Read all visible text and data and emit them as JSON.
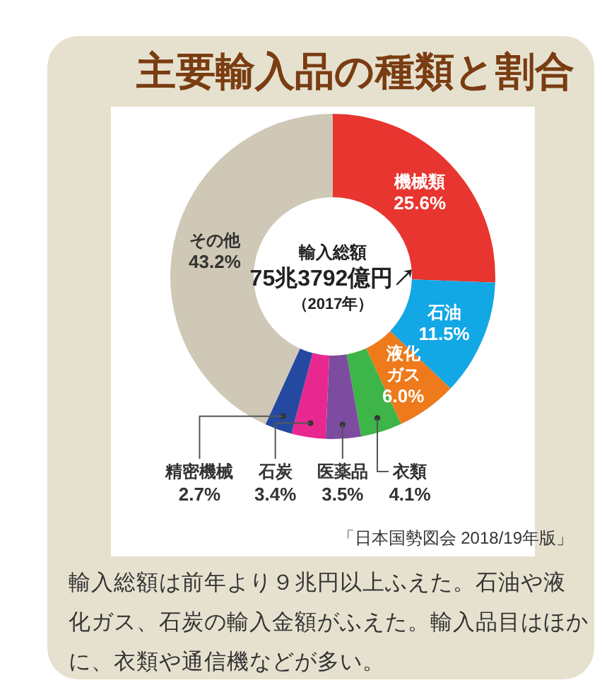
{
  "chart_data": {
    "type": "donut",
    "title": "主要輸入品の種類と割合",
    "categories": [
      "機械類",
      "石油",
      "液化ガス",
      "衣類",
      "医薬品",
      "石炭",
      "精密機械",
      "その他"
    ],
    "values": [
      25.6,
      11.5,
      6.0,
      4.1,
      3.5,
      3.4,
      2.7,
      43.2
    ],
    "value_labels": [
      "25.6%",
      "11.5%",
      "6.0%",
      "4.1%",
      "3.5%",
      "3.4%",
      "2.7%",
      "43.2%"
    ],
    "colors": [
      "#e8352f",
      "#12a7e5",
      "#ee7a1c",
      "#3db549",
      "#7d4ca0",
      "#e8288f",
      "#2549a0",
      "#cfc8b6"
    ],
    "annotations": [
      "輸入総額",
      "75兆3792億円↗",
      "（2017年）",
      "「日本国勢図会 2018/19年版」",
      "輸入総額は前年より９兆円以上ふえた。石油や液化ガス、石炭の輸入金額がふえた。輸入品目はほかに、衣類や通信機などが多い。"
    ]
  }
}
